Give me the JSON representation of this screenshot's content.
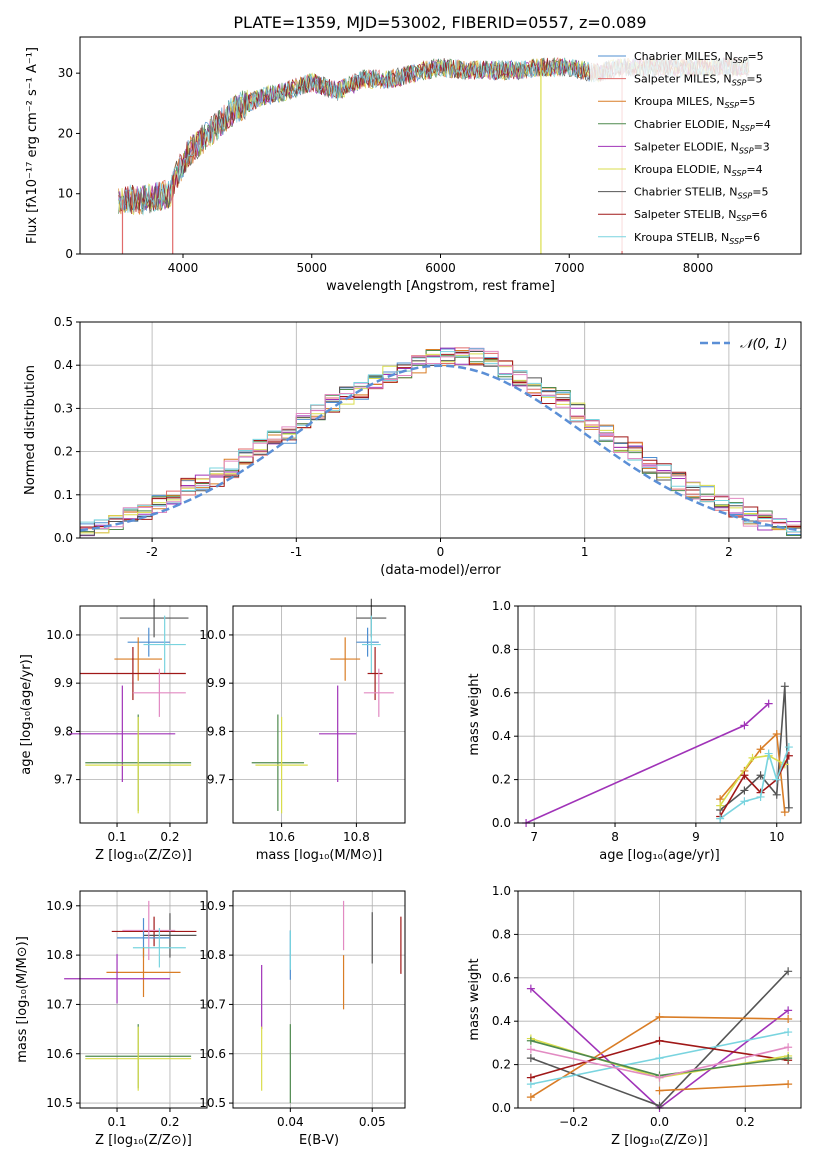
{
  "title": "PLATE=1359, MJD=53002, FIBERID=0557, z=0.089",
  "colors": {
    "Chabrier MILES": "#4f8fd1",
    "Salpeter MILES": "#e06b6b",
    "Kroupa MILES": "#d97d26",
    "Chabrier ELODIE": "#4f8a4f",
    "Salpeter ELODIE": "#a033b8",
    "Kroupa ELODIE": "#d9dd4c",
    "Chabrier STELIB": "#555555",
    "Salpeter STELIB": "#a01818",
    "Kroupa STELIB": "#79d4df",
    "pink": "#e28ac2",
    "normal": "#5b8fd6"
  },
  "chart_data": [
    {
      "id": "spectrum",
      "type": "line",
      "xlabel": "wavelength [Angstrom, rest frame]",
      "ylabel": "Flux [fλ10⁻¹⁷ erg cm⁻² s⁻¹ A⁻¹]",
      "xlim": [
        3200,
        8800
      ],
      "ylim": [
        0,
        36
      ],
      "xticks": [
        4000,
        5000,
        6000,
        7000,
        8000
      ],
      "yticks": [
        0,
        10,
        20,
        30
      ],
      "legend_position": "top-right",
      "legend": [
        "Chabrier MILES, N<sub>SSP</sub>=5",
        "Salpeter MILES, N<sub>SSP</sub>=5",
        "Kroupa MILES, N<sub>SSP</sub>=5",
        "Chabrier ELODIE, N<sub>SSP</sub>=4",
        "Salpeter ELODIE, N<sub>SSP</sub>=3",
        "Kroupa ELODIE, N<sub>SSP</sub>=4",
        "Chabrier STELIB, N<sub>SSP</sub>=5",
        "Salpeter STELIB, N<sub>SSP</sub>=6",
        "Kroupa STELIB, N<sub>SSP</sub>=6"
      ],
      "legend_colors": [
        "Chabrier MILES",
        "Salpeter MILES",
        "Kroupa MILES",
        "Chabrier ELODIE",
        "Salpeter ELODIE",
        "Kroupa ELODIE",
        "Chabrier STELIB",
        "Salpeter STELIB",
        "Kroupa STELIB"
      ],
      "envelope": {
        "x": [
          3500,
          3700,
          3900,
          3950,
          4050,
          4200,
          4400,
          4600,
          4800,
          5000,
          5200,
          5400,
          5600,
          5800,
          6000,
          6200,
          6400,
          6600,
          6800,
          7000,
          7200,
          7400,
          7600,
          7800,
          8000,
          8200,
          8400
        ],
        "y": [
          9,
          9,
          10,
          13,
          17,
          20,
          24,
          26,
          27,
          28.5,
          27,
          29,
          29,
          30,
          31,
          30.5,
          30.5,
          30.5,
          31,
          31,
          30,
          31,
          31,
          31,
          31,
          31,
          31
        ]
      },
      "spikes": [
        {
          "x": 3530,
          "y": 0
        },
        {
          "x": 3920,
          "y": 0
        },
        {
          "x": 6780,
          "y": 0
        },
        {
          "x": 7410,
          "y": 0
        }
      ]
    },
    {
      "id": "residuals",
      "type": "bar",
      "xlabel": "(data-model)/error",
      "ylabel": "Normed distribution",
      "xlim": [
        -2.5,
        2.5
      ],
      "ylim": [
        0,
        0.5
      ],
      "xticks": [
        -2,
        -1,
        0,
        1,
        2
      ],
      "yticks": [
        0.0,
        0.1,
        0.2,
        0.3,
        0.4,
        0.5
      ],
      "legend": "𝒩(0, 1)",
      "bin_width": 0.1,
      "x_start": -2.5,
      "mean_hist": [
        0.02,
        0.03,
        0.04,
        0.05,
        0.06,
        0.08,
        0.1,
        0.12,
        0.13,
        0.14,
        0.16,
        0.19,
        0.21,
        0.23,
        0.24,
        0.27,
        0.29,
        0.31,
        0.33,
        0.34,
        0.36,
        0.38,
        0.39,
        0.4,
        0.42,
        0.42,
        0.42,
        0.42,
        0.41,
        0.39,
        0.37,
        0.35,
        0.33,
        0.32,
        0.29,
        0.27,
        0.24,
        0.22,
        0.2,
        0.17,
        0.15,
        0.13,
        0.11,
        0.1,
        0.08,
        0.07,
        0.05,
        0.04,
        0.03,
        0.02
      ]
    },
    {
      "id": "age_vs_Z",
      "type": "scatter",
      "xlabel": "Z [log₁₀(Z/Z⊙)]",
      "ylabel": "age  [log₁₀(age/yr)]",
      "xlim": [
        0.03,
        0.27
      ],
      "ylim": [
        9.61,
        10.06
      ],
      "xticks": [
        0.1,
        0.2
      ],
      "yticks": [
        9.7,
        9.8,
        9.9,
        10.0
      ],
      "points": [
        {
          "c": "Chabrier STELIB",
          "x": 0.17,
          "y": 10.035,
          "xe": 0.065,
          "ye": 0.04
        },
        {
          "c": "Chabrier MILES",
          "x": 0.16,
          "y": 9.985,
          "xe": 0.04,
          "ye": 0.03
        },
        {
          "c": "Kroupa STELIB",
          "x": 0.19,
          "y": 9.98,
          "xe": 0.04,
          "ye": 0.06
        },
        {
          "c": "Kroupa MILES",
          "x": 0.14,
          "y": 9.95,
          "xe": 0.045,
          "ye": 0.045
        },
        {
          "c": "Salpeter STELIB",
          "x": 0.13,
          "y": 9.92,
          "xe": 0.1,
          "ye": 0.055
        },
        {
          "c": "pink",
          "x": 0.18,
          "y": 9.88,
          "xe": 0.05,
          "ye": 0.05
        },
        {
          "c": "Salpeter ELODIE",
          "x": 0.11,
          "y": 9.795,
          "xe": 0.1,
          "ye": 0.1
        },
        {
          "c": "Chabrier ELODIE",
          "x": 0.14,
          "y": 9.735,
          "xe": 0.1,
          "ye": 0.1
        },
        {
          "c": "Kroupa ELODIE",
          "x": 0.14,
          "y": 9.73,
          "xe": 0.1,
          "ye": 0.1
        }
      ]
    },
    {
      "id": "age_vs_mass",
      "type": "scatter",
      "xlabel": "mass [log₁₀(M/M⊙)]",
      "ylabel": "",
      "xlim": [
        10.47,
        10.93
      ],
      "ylim": [
        9.61,
        10.06
      ],
      "xticks": [
        10.6,
        10.8
      ],
      "yticks": [
        9.7,
        9.8,
        9.9,
        10.0
      ],
      "points": [
        {
          "c": "Chabrier STELIB",
          "x": 10.84,
          "y": 10.035,
          "xe": 0.04,
          "ye": 0.04
        },
        {
          "c": "Chabrier MILES",
          "x": 10.83,
          "y": 9.985,
          "xe": 0.03,
          "ye": 0.03
        },
        {
          "c": "Kroupa STELIB",
          "x": 10.84,
          "y": 9.98,
          "xe": 0.025,
          "ye": 0.06
        },
        {
          "c": "Kroupa MILES",
          "x": 10.77,
          "y": 9.95,
          "xe": 0.04,
          "ye": 0.045
        },
        {
          "c": "Salpeter STELIB",
          "x": 10.85,
          "y": 9.92,
          "xe": 0.02,
          "ye": 0.055
        },
        {
          "c": "pink",
          "x": 10.86,
          "y": 9.88,
          "xe": 0.04,
          "ye": 0.05
        },
        {
          "c": "Salpeter ELODIE",
          "x": 10.75,
          "y": 9.795,
          "xe": 0.05,
          "ye": 0.1
        },
        {
          "c": "Chabrier ELODIE",
          "x": 10.59,
          "y": 9.735,
          "xe": 0.07,
          "ye": 0.1
        },
        {
          "c": "Kroupa ELODIE",
          "x": 10.6,
          "y": 9.73,
          "xe": 0.07,
          "ye": 0.1
        }
      ]
    },
    {
      "id": "weight_vs_age",
      "type": "line",
      "xlabel": "age  [log₁₀(age/yr)]",
      "ylabel": "mass weight",
      "xlim": [
        6.8,
        10.3
      ],
      "ylim": [
        0,
        1.0
      ],
      "xticks": [
        7,
        8,
        9,
        10
      ],
      "yticks": [
        0.0,
        0.2,
        0.4,
        0.6,
        0.8,
        1.0
      ],
      "series": [
        {
          "c": "Salpeter ELODIE",
          "x": [
            6.9,
            9.6,
            9.9
          ],
          "y": [
            0.0,
            0.45,
            0.55
          ]
        },
        {
          "c": "Chabrier STELIB",
          "x": [
            9.3,
            9.6,
            9.8,
            10.0,
            10.1,
            10.15
          ],
          "y": [
            0.06,
            0.15,
            0.22,
            0.13,
            0.63,
            0.07
          ]
        },
        {
          "c": "Kroupa MILES",
          "x": [
            9.3,
            9.6,
            9.8,
            10.0,
            10.1
          ],
          "y": [
            0.11,
            0.24,
            0.34,
            0.41,
            0.05
          ]
        },
        {
          "c": "Kroupa ELODIE",
          "x": [
            9.3,
            9.7,
            9.9,
            10.1
          ],
          "y": [
            0.08,
            0.3,
            0.31,
            0.27
          ]
        },
        {
          "c": "Salpeter STELIB",
          "x": [
            9.3,
            9.6,
            9.8,
            10.0,
            10.15
          ],
          "y": [
            0.03,
            0.22,
            0.14,
            0.2,
            0.31
          ]
        },
        {
          "c": "Kroupa STELIB",
          "x": [
            9.3,
            9.6,
            9.8,
            9.9,
            10.0,
            10.15
          ],
          "y": [
            0.02,
            0.1,
            0.12,
            0.32,
            0.2,
            0.35
          ]
        }
      ]
    },
    {
      "id": "mass_vs_Z",
      "type": "scatter",
      "xlabel": "Z [log₁₀(Z/Z⊙)]",
      "ylabel": "mass [log₁₀(M/M⊙)]",
      "xlim": [
        0.03,
        0.27
      ],
      "ylim": [
        10.49,
        10.93
      ],
      "xticks": [
        0.1,
        0.2
      ],
      "yticks": [
        10.5,
        10.6,
        10.7,
        10.8,
        10.9
      ],
      "points": [
        {
          "c": "Salpeter STELIB",
          "x": 0.17,
          "y": 10.848,
          "xe": 0.08,
          "ye": 0.03
        },
        {
          "c": "Chabrier STELIB",
          "x": 0.2,
          "y": 10.84,
          "xe": 0.05,
          "ye": 0.045
        },
        {
          "c": "Chabrier MILES",
          "x": 0.15,
          "y": 10.835,
          "xe": 0.05,
          "ye": 0.04
        },
        {
          "c": "pink",
          "x": 0.16,
          "y": 10.85,
          "xe": 0.05,
          "ye": 0.06
        },
        {
          "c": "Kroupa STELIB",
          "x": 0.18,
          "y": 10.815,
          "xe": 0.05,
          "ye": 0.04
        },
        {
          "c": "Kroupa MILES",
          "x": 0.15,
          "y": 10.765,
          "xe": 0.07,
          "ye": 0.05
        },
        {
          "c": "Salpeter ELODIE",
          "x": 0.1,
          "y": 10.752,
          "xe": 0.1,
          "ye": 0.05
        },
        {
          "c": "Chabrier ELODIE",
          "x": 0.14,
          "y": 10.595,
          "xe": 0.1,
          "ye": 0.065
        },
        {
          "c": "Kroupa ELODIE",
          "x": 0.14,
          "y": 10.59,
          "xe": 0.1,
          "ye": 0.065
        }
      ]
    },
    {
      "id": "mass_vs_ebv",
      "type": "scatter",
      "xlabel": "E(B-V)",
      "ylabel": "",
      "xlim": [
        0.033,
        0.054
      ],
      "ylim": [
        10.49,
        10.93
      ],
      "xticks": [
        0.04,
        0.05
      ],
      "yticks": [
        10.5,
        10.6,
        10.7,
        10.8,
        10.9
      ],
      "points": [
        {
          "c": "Salpeter STELIB",
          "x": 0.0535,
          "y": 10.82,
          "xe": 0,
          "ye": 0.058
        },
        {
          "c": "Chabrier STELIB",
          "x": 0.05,
          "y": 10.835,
          "xe": 0,
          "ye": 0.052
        },
        {
          "c": "pink",
          "x": 0.0465,
          "y": 10.86,
          "xe": 0,
          "ye": 0.05
        },
        {
          "c": "Kroupa MILES",
          "x": 0.0465,
          "y": 10.745,
          "xe": 0,
          "ye": 0.055
        },
        {
          "c": "Chabrier MILES",
          "x": 0.04,
          "y": 10.8,
          "xe": 0,
          "ye": 0.05
        },
        {
          "c": "Kroupa STELIB",
          "x": 0.04,
          "y": 10.81,
          "xe": 0,
          "ye": 0.04
        },
        {
          "c": "Salpeter ELODIE",
          "x": 0.0365,
          "y": 10.715,
          "xe": 0,
          "ye": 0.065
        },
        {
          "c": "Kroupa ELODIE",
          "x": 0.0365,
          "y": 10.59,
          "xe": 0,
          "ye": 0.065
        },
        {
          "c": "Chabrier ELODIE",
          "x": 0.04,
          "y": 10.58,
          "xe": 0,
          "ye": 0.08
        }
      ]
    },
    {
      "id": "weight_vs_Z",
      "type": "line",
      "xlabel": "Z [log₁₀(Z/Z⊙)]",
      "ylabel": "mass weight",
      "xlim": [
        -0.33,
        0.33
      ],
      "ylim": [
        0,
        1.0
      ],
      "xticks": [
        -0.2,
        0.0,
        0.2
      ],
      "yticks": [
        0.0,
        0.2,
        0.4,
        0.6,
        0.8,
        1.0
      ],
      "series": [
        {
          "c": "Salpeter ELODIE",
          "x": [
            -0.3,
            0.0,
            0.3
          ],
          "y": [
            0.55,
            0.0,
            0.45
          ]
        },
        {
          "c": "Chabrier STELIB",
          "x": [
            -0.3,
            0.0,
            0.3
          ],
          "y": [
            0.23,
            0.01,
            0.63
          ]
        },
        {
          "c": "Kroupa MILES",
          "x": [
            -0.3,
            0.0,
            0.3
          ],
          "y": [
            0.05,
            0.42,
            0.41
          ]
        },
        {
          "c": "Kroupa STELIB",
          "x": [
            -0.3,
            0.0,
            0.3
          ],
          "y": [
            0.11,
            0.23,
            0.35
          ]
        },
        {
          "c": "Salpeter STELIB",
          "x": [
            -0.3,
            0.0,
            0.3
          ],
          "y": [
            0.14,
            0.31,
            0.22
          ]
        },
        {
          "c": "Kroupa ELODIE",
          "x": [
            -0.3,
            0.0,
            0.3
          ],
          "y": [
            0.32,
            0.14,
            0.24
          ]
        },
        {
          "c": "Chabrier ELODIE",
          "x": [
            -0.3,
            0.0,
            0.3
          ],
          "y": [
            0.31,
            0.15,
            0.23
          ]
        },
        {
          "c": "pink",
          "x": [
            -0.3,
            0.0,
            0.3
          ],
          "y": [
            0.27,
            0.14,
            0.28
          ]
        },
        {
          "c": "Kroupa MILES",
          "x": [
            0.0,
            0.3
          ],
          "y": [
            0.08,
            0.11
          ]
        }
      ]
    }
  ]
}
